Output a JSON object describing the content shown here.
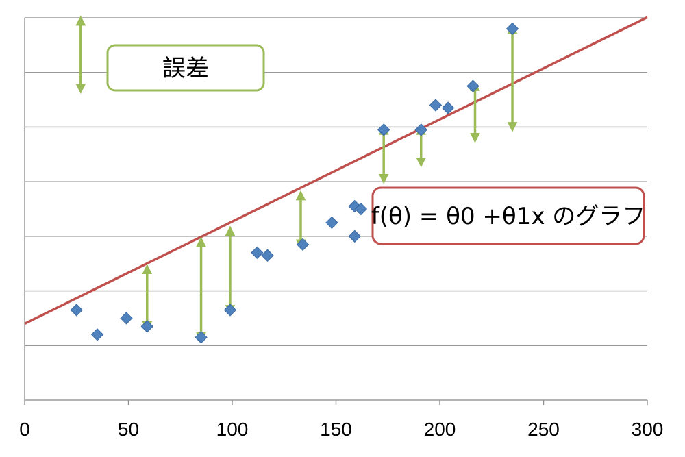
{
  "chart_data": {
    "type": "scatter",
    "x_ticks": [
      "0",
      "50",
      "100",
      "150",
      "200",
      "250",
      "300"
    ],
    "xlim": [
      0,
      300
    ],
    "ylim": [
      0,
      7
    ],
    "grid": true,
    "points": [
      {
        "x": 25,
        "y": 1.65
      },
      {
        "x": 35,
        "y": 1.2
      },
      {
        "x": 49,
        "y": 1.5
      },
      {
        "x": 59,
        "y": 1.35
      },
      {
        "x": 85,
        "y": 1.15
      },
      {
        "x": 99,
        "y": 1.65
      },
      {
        "x": 112,
        "y": 2.7
      },
      {
        "x": 117,
        "y": 2.65
      },
      {
        "x": 134,
        "y": 2.85
      },
      {
        "x": 148,
        "y": 3.25
      },
      {
        "x": 159,
        "y": 3.55
      },
      {
        "x": 162,
        "y": 3.5
      },
      {
        "x": 159,
        "y": 3.0
      },
      {
        "x": 173,
        "y": 4.95
      },
      {
        "x": 191,
        "y": 4.95
      },
      {
        "x": 198,
        "y": 5.4
      },
      {
        "x": 204,
        "y": 5.35
      },
      {
        "x": 216,
        "y": 5.75
      },
      {
        "x": 235,
        "y": 6.8
      }
    ],
    "fit_line": {
      "intercept": 1.4,
      "slope": 0.0187
    },
    "error_arrows": [
      {
        "x": 59,
        "y1": 1.35,
        "y2": 2.4
      },
      {
        "x": 85,
        "y1": 1.15,
        "y2": 2.9
      },
      {
        "x": 99,
        "y1": 1.65,
        "y2": 3.1
      },
      {
        "x": 133,
        "y1": 2.85,
        "y2": 3.75
      },
      {
        "x": 173,
        "y1": 4.95,
        "y2": 4.05
      },
      {
        "x": 191,
        "y1": 4.95,
        "y2": 4.35
      },
      {
        "x": 217,
        "y1": 5.75,
        "y2": 4.8
      },
      {
        "x": 235,
        "y1": 6.8,
        "y2": 5.0
      }
    ],
    "legend_arrow": {
      "x": 27,
      "y1": 5.7,
      "y2": 6.95
    },
    "callouts": {
      "error_label": "誤差",
      "function_label": "f(θ) = θ0 +θ1x のグラフ"
    },
    "colors": {
      "points": "#4f81bd",
      "line": "#c0504d",
      "arrows": "#9bbb59",
      "grid": "#888888"
    }
  }
}
